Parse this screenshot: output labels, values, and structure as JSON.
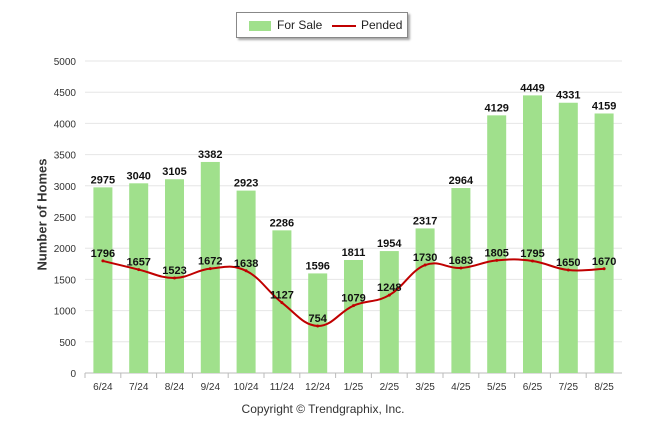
{
  "legend": {
    "for_sale": "For Sale",
    "pended": "Pended"
  },
  "ylabel": "Number of Homes",
  "copyright": "Copyright © Trendgraphix, Inc.",
  "colors": {
    "bar": "#a0e08c",
    "line": "#c00000",
    "grid": "#e6e6e6",
    "axis": "#bbbbbb"
  },
  "chart_data": {
    "type": "bar",
    "categories": [
      "6/24",
      "7/24",
      "8/24",
      "9/24",
      "10/24",
      "11/24",
      "12/24",
      "1/25",
      "2/25",
      "3/25",
      "4/25",
      "5/25",
      "6/25",
      "7/25",
      "8/25"
    ],
    "series": [
      {
        "name": "For Sale",
        "type": "bar",
        "values": [
          2975,
          3040,
          3105,
          3382,
          2923,
          2286,
          1596,
          1811,
          1954,
          2317,
          2964,
          4129,
          4449,
          4331,
          4159
        ]
      },
      {
        "name": "Pended",
        "type": "line",
        "values": [
          1796,
          1657,
          1523,
          1672,
          1638,
          1127,
          754,
          1079,
          1248,
          1730,
          1683,
          1805,
          1795,
          1650,
          1670
        ]
      }
    ],
    "ylabel": "Number of Homes",
    "ylim": [
      0,
      5000
    ],
    "yticks": [
      0,
      500,
      1000,
      1500,
      2000,
      2500,
      3000,
      3500,
      4000,
      4500,
      5000
    ],
    "grid": true,
    "legend_position": "top-center"
  }
}
